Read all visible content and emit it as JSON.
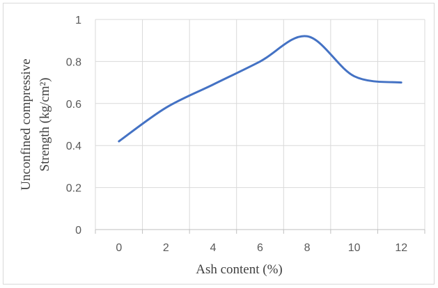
{
  "chart_data": {
    "type": "line",
    "xlabel": "Ash content (%)",
    "ylabel_line1": "Unconfined compressive",
    "ylabel_line2": "Strength (kg/cm²)",
    "x": [
      0,
      2,
      4,
      6,
      8,
      10,
      12
    ],
    "series": [
      {
        "values": [
          0.42,
          0.58,
          0.69,
          0.8,
          0.92,
          0.73,
          0.7
        ]
      }
    ],
    "xticks": [
      0,
      2,
      4,
      6,
      8,
      10,
      12
    ],
    "yticks": [
      0,
      0.2,
      0.4,
      0.6,
      0.8,
      1
    ],
    "ytick_labels": [
      "0",
      "0.2",
      "0.4",
      "0.6",
      "0.8",
      "1"
    ],
    "xlim": [
      -1,
      13
    ],
    "ylim": [
      0,
      1
    ],
    "grid": true,
    "line_color": "#4472c4",
    "grid_color": "#d9d9d9"
  }
}
